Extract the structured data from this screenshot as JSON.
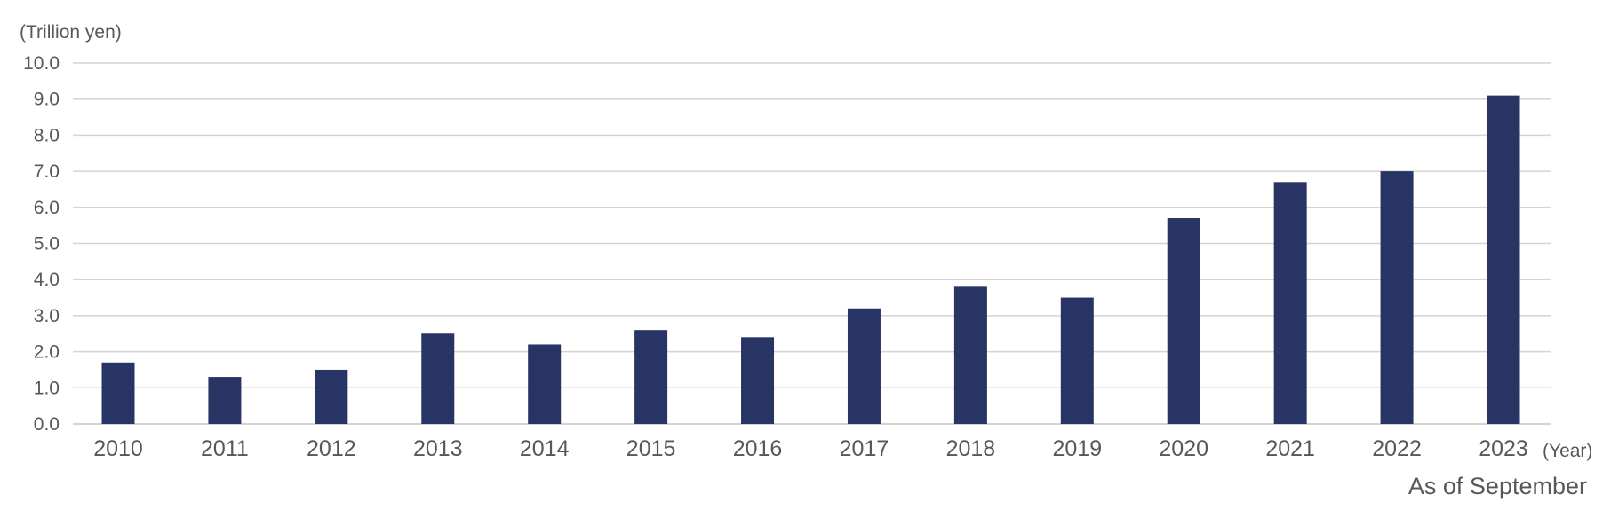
{
  "chart_data": {
    "type": "bar",
    "y_unit_label": "(Trillion yen)",
    "x_unit_label": "(Year)",
    "note": "As of September",
    "categories": [
      "2010",
      "2011",
      "2012",
      "2013",
      "2014",
      "2015",
      "2016",
      "2017",
      "2018",
      "2019",
      "2020",
      "2021",
      "2022",
      "2023"
    ],
    "values": [
      1.7,
      1.3,
      1.5,
      2.5,
      2.2,
      2.6,
      2.4,
      3.2,
      3.8,
      3.5,
      5.7,
      6.7,
      7.0,
      9.1
    ],
    "ylim": [
      0,
      10
    ],
    "yticks": [
      "0.0",
      "1.0",
      "2.0",
      "3.0",
      "4.0",
      "5.0",
      "6.0",
      "7.0",
      "8.0",
      "9.0",
      "10.0"
    ],
    "grid": true,
    "legend": "none",
    "colors": {
      "bar": "#283464",
      "grid": "#d3d3d3",
      "text": "#595757"
    }
  }
}
